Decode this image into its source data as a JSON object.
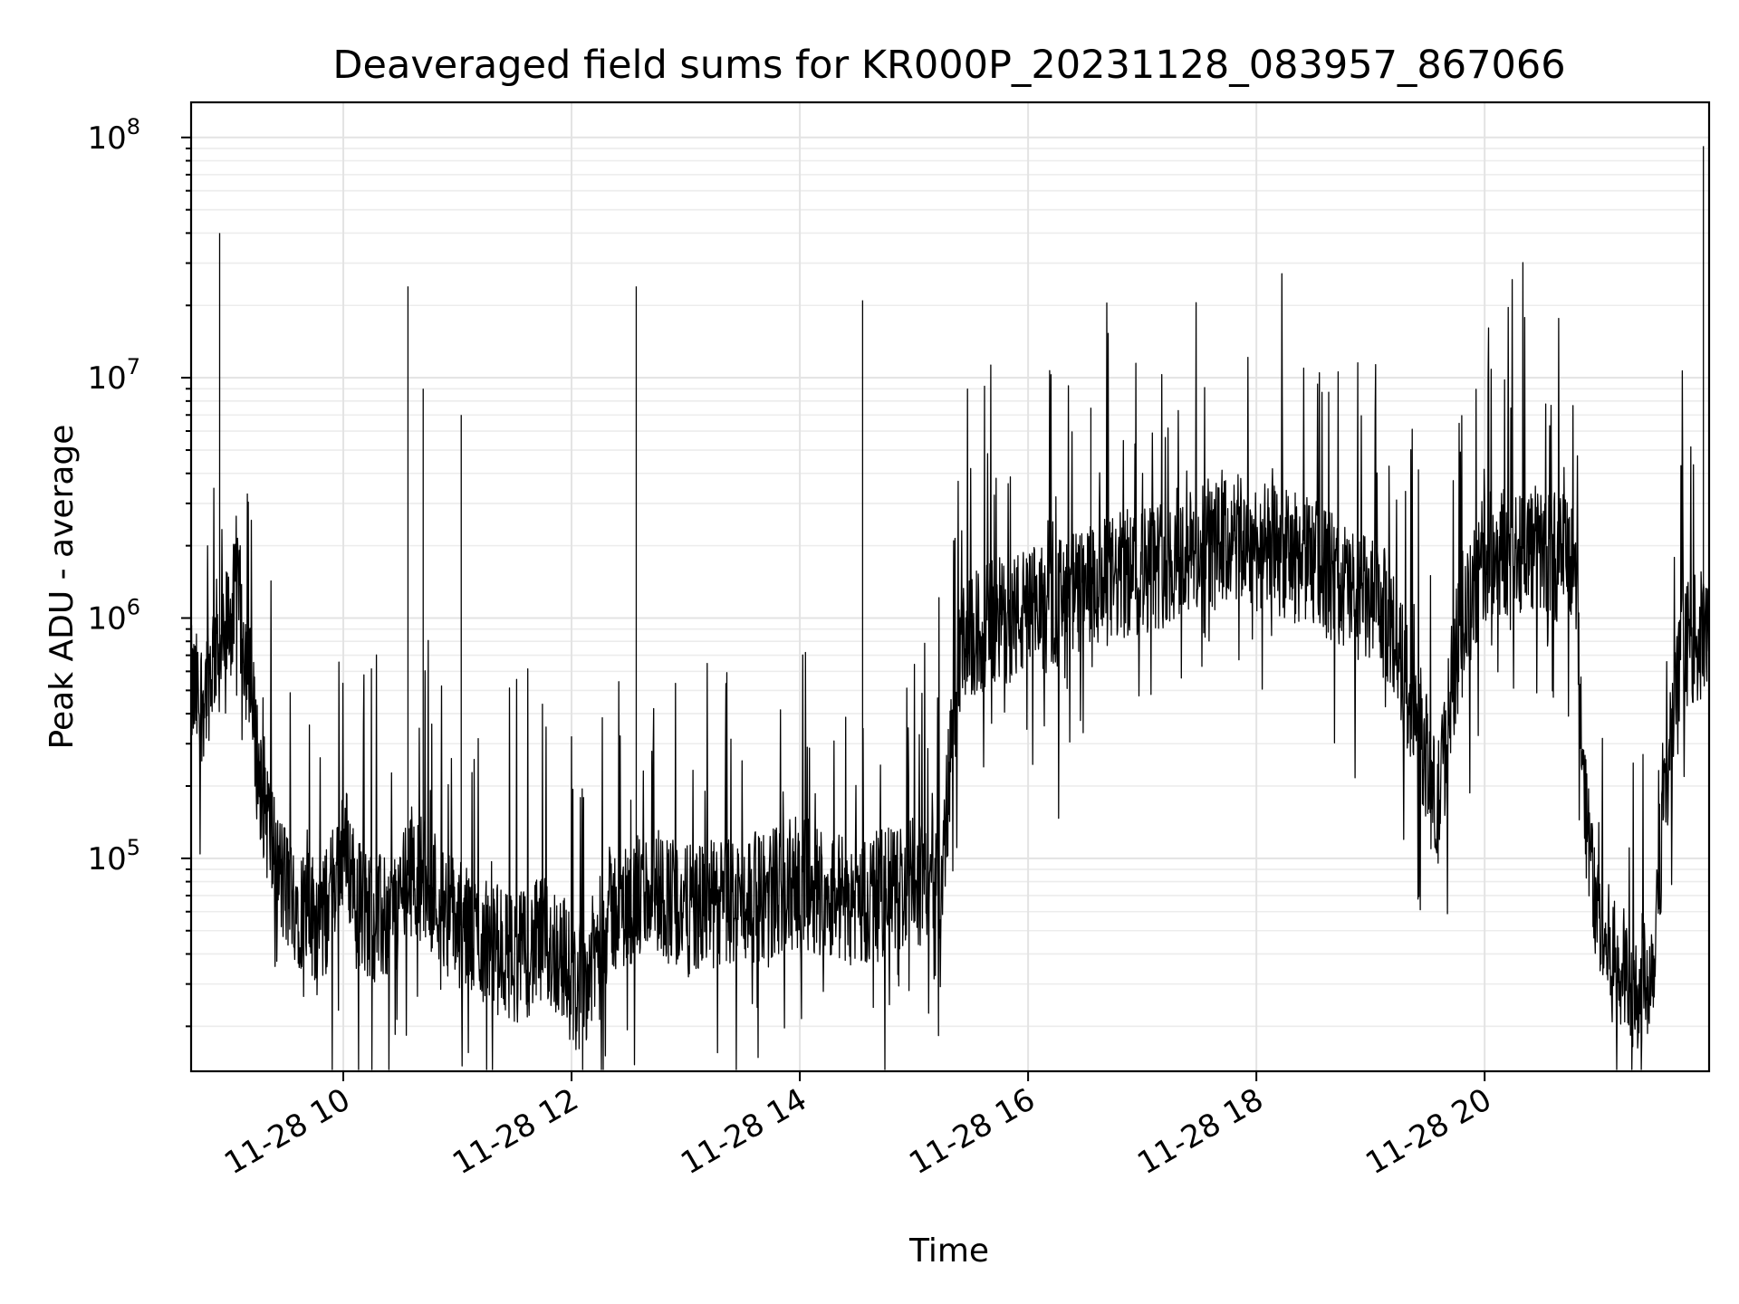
{
  "chart_data": {
    "type": "line",
    "title": "Deaveraged field sums for KR000P_20231128_083957_867066",
    "xlabel": "Time",
    "ylabel": "Peak ADU - average",
    "yscale": "log",
    "ylim": [
      13000,
      140000000
    ],
    "xlim": [
      "2023-11-28 08:40",
      "2023-11-28 21:58"
    ],
    "grid": true,
    "x_ticks": [
      {
        "value": "2023-11-28 10:00",
        "label": "11-28 10"
      },
      {
        "value": "2023-11-28 12:00",
        "label": "11-28 12"
      },
      {
        "value": "2023-11-28 14:00",
        "label": "11-28 14"
      },
      {
        "value": "2023-11-28 16:00",
        "label": "11-28 16"
      },
      {
        "value": "2023-11-28 18:00",
        "label": "11-28 18"
      },
      {
        "value": "2023-11-28 20:00",
        "label": "11-28 20"
      }
    ],
    "y_ticks": [
      {
        "value": 100000,
        "base": "10",
        "exp": "5"
      },
      {
        "value": 1000000,
        "base": "10",
        "exp": "6"
      },
      {
        "value": 10000000,
        "base": "10",
        "exp": "7"
      },
      {
        "value": 100000000,
        "base": "10",
        "exp": "8"
      }
    ],
    "series": [
      {
        "color": "#000000",
        "x": [
          "2023-11-28 08:40",
          "2023-11-28 08:45",
          "2023-11-28 08:50",
          "2023-11-28 08:53",
          "2023-11-28 08:56",
          "2023-11-28 09:00",
          "2023-11-28 09:05",
          "2023-11-28 09:10",
          "2023-11-28 09:15",
          "2023-11-28 09:20",
          "2023-11-28 09:25",
          "2023-11-28 09:30",
          "2023-11-28 09:34",
          "2023-11-28 09:40",
          "2023-11-28 09:50",
          "2023-11-28 10:00",
          "2023-11-28 10:10",
          "2023-11-28 10:20",
          "2023-11-28 10:28",
          "2023-11-28 10:35",
          "2023-11-28 10:45",
          "2023-11-28 10:55",
          "2023-11-28 11:00",
          "2023-11-28 11:04",
          "2023-11-28 11:15",
          "2023-11-28 11:30",
          "2023-11-28 11:45",
          "2023-11-28 11:55",
          "2023-11-28 12:02",
          "2023-11-28 12:10",
          "2023-11-28 12:20",
          "2023-11-28 12:32",
          "2023-11-28 12:45",
          "2023-11-28 13:00",
          "2023-11-28 13:20",
          "2023-11-28 13:40",
          "2023-11-28 14:00",
          "2023-11-28 14:20",
          "2023-11-28 14:33",
          "2023-11-28 14:50",
          "2023-11-28 15:05",
          "2023-11-28 15:15",
          "2023-11-28 15:20",
          "2023-11-28 15:25",
          "2023-11-28 15:35",
          "2023-11-28 15:50",
          "2023-11-28 16:10",
          "2023-11-28 16:30",
          "2023-11-28 16:33",
          "2023-11-28 16:50",
          "2023-11-28 17:10",
          "2023-11-28 17:30",
          "2023-11-28 17:50",
          "2023-11-28 18:10",
          "2023-11-28 18:30",
          "2023-11-28 18:50",
          "2023-11-28 19:10",
          "2023-11-28 19:20",
          "2023-11-28 19:28",
          "2023-11-28 19:35",
          "2023-11-28 19:45",
          "2023-11-28 20:00",
          "2023-11-28 20:20",
          "2023-11-28 20:40",
          "2023-11-28 20:48",
          "2023-11-28 20:52",
          "2023-11-28 21:00",
          "2023-11-28 21:10",
          "2023-11-28 21:20",
          "2023-11-28 21:28",
          "2023-11-28 21:35",
          "2023-11-28 21:45",
          "2023-11-28 21:50",
          "2023-11-28 21:55",
          "2023-11-28 21:58"
        ],
        "y": [
          500000,
          450000,
          600000,
          800000,
          700000,
          1000000,
          1200000,
          600000,
          250000,
          150000,
          90000,
          75000,
          70000,
          60000,
          55000,
          120000,
          60000,
          55000,
          60000,
          90000,
          80000,
          60000,
          55000,
          50000,
          45000,
          38000,
          45000,
          40000,
          28000,
          35000,
          60000,
          65000,
          75000,
          60000,
          65000,
          70000,
          80000,
          70000,
          65000,
          75000,
          80000,
          80000,
          350000,
          700000,
          900000,
          1000000,
          1100000,
          1300000,
          1300000,
          1500000,
          1700000,
          1900000,
          2100000,
          1900000,
          1700000,
          1300000,
          1000000,
          500000,
          300000,
          150000,
          700000,
          1800000,
          2000000,
          1800000,
          1700000,
          200000,
          50000,
          35000,
          30000,
          35000,
          200000,
          800000,
          800000,
          850000,
          850000
        ]
      }
    ],
    "spikes": [
      {
        "x": "2023-11-28 08:55",
        "y": 40000000
      },
      {
        "x": "2023-11-28 10:34",
        "y": 24000000
      },
      {
        "x": "2023-11-28 10:42",
        "y": 9000000
      },
      {
        "x": "2023-11-28 11:02",
        "y": 7000000
      },
      {
        "x": "2023-11-28 12:34",
        "y": 24000000
      },
      {
        "x": "2023-11-28 14:33",
        "y": 21000000
      },
      {
        "x": "2023-11-28 16:33",
        "y": 7500000
      },
      {
        "x": "2023-11-28 21:55",
        "y": 92000000
      }
    ]
  }
}
